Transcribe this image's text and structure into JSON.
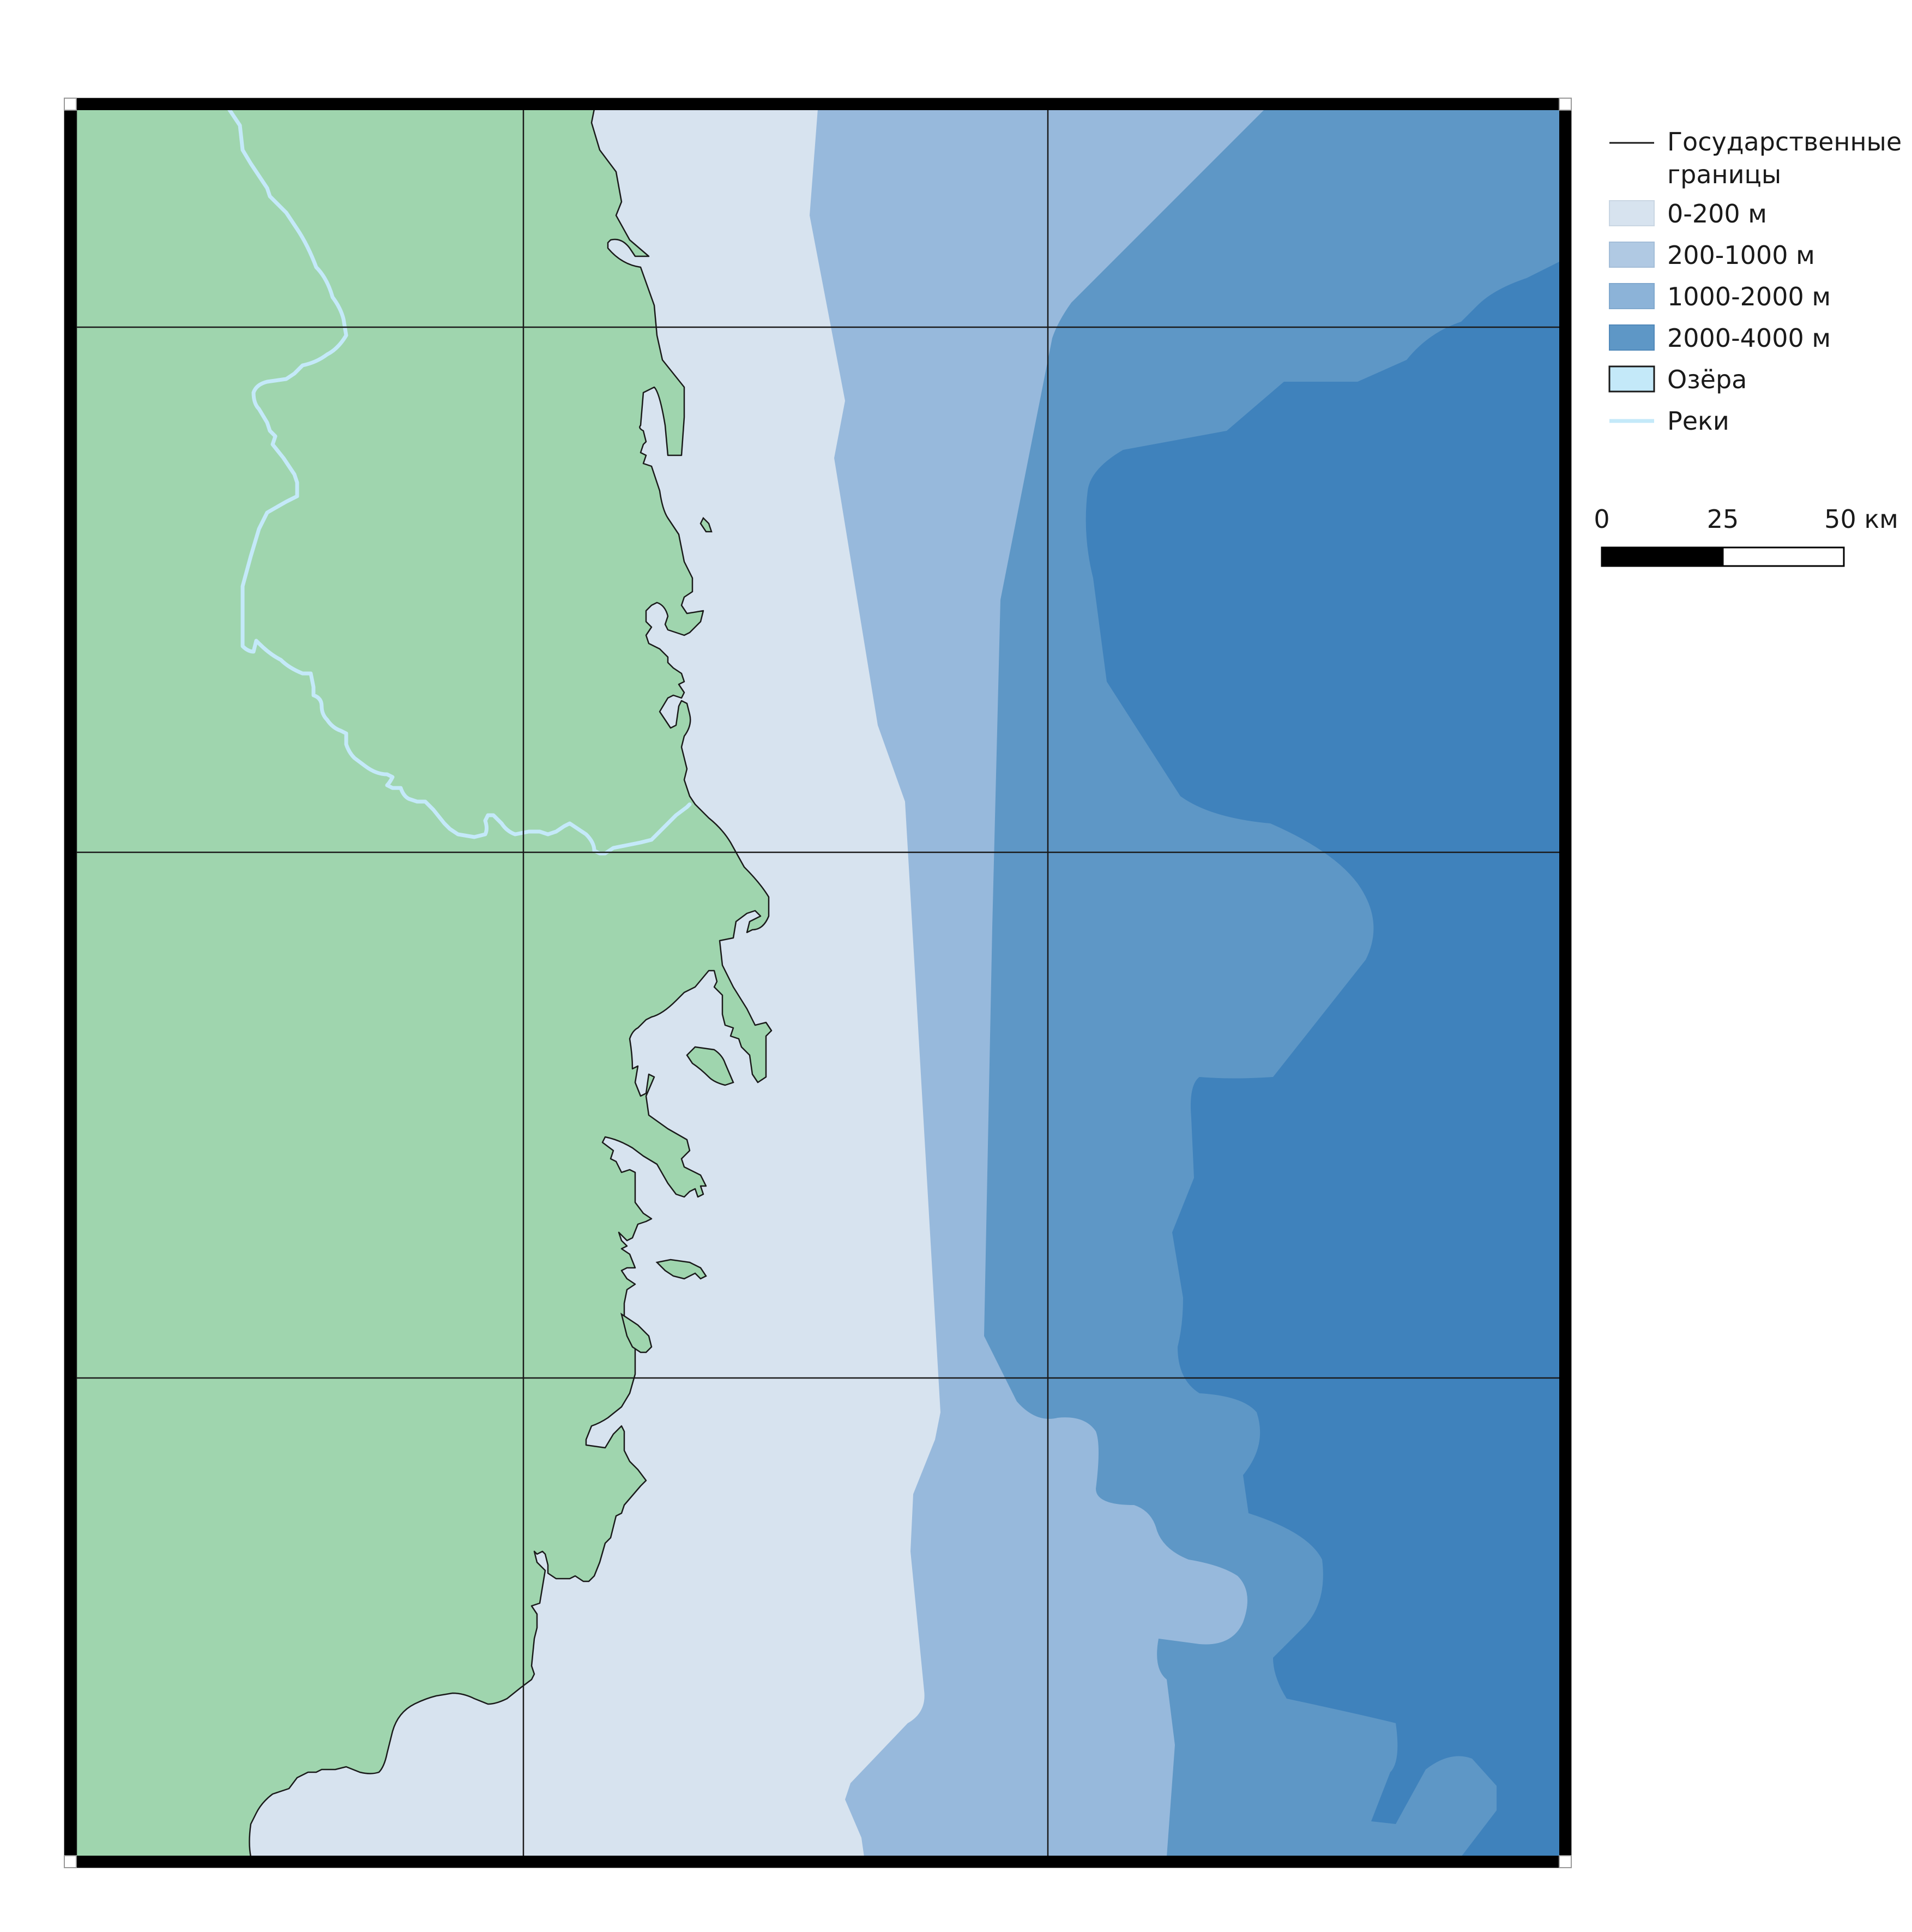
{
  "legend": {
    "borders_line1": "Государственные",
    "borders_line2": "границы",
    "depth_0_200": "0-200 м",
    "depth_200_1000": "200-1000 м",
    "depth_1000_2000": "1000-2000 м",
    "depth_2000_4000": "2000-4000 м",
    "lakes": "Озёра",
    "rivers": "Реки"
  },
  "scalebar": {
    "tick_0": "0",
    "tick_25": "25",
    "tick_50": "50 км"
  },
  "colors": {
    "land": "#9fd5ae",
    "depth_0_200": "#d7e3ef",
    "depth_200_1000": "#b0c9e3",
    "depth_1000_2000": "#97b9dc",
    "depth_2000_4000": "#5e97c6",
    "depth_deep": "#3f82bc",
    "lakes": "#c4e9f9",
    "rivers": "#c4e9f9",
    "border": "#1a1a1a",
    "frame": "#000000"
  }
}
